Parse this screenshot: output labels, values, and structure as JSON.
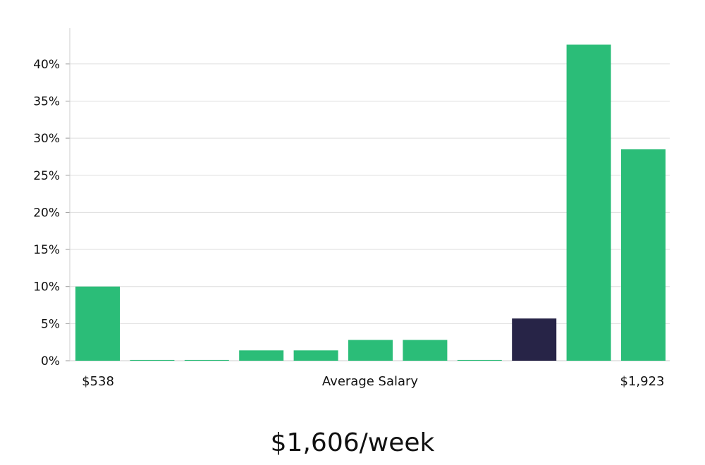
{
  "chart_data": {
    "type": "bar",
    "title": "",
    "xlabel": "Average Salary",
    "ylabel": "",
    "x_min_label": "$538",
    "x_max_label": "$1,923",
    "ylim": [
      0,
      45
    ],
    "yticks": [
      0,
      5,
      10,
      15,
      20,
      25,
      30,
      35,
      40
    ],
    "ytick_labels": [
      "0%",
      "5%",
      "10%",
      "15%",
      "20%",
      "25%",
      "30%",
      "35%",
      "40%"
    ],
    "values": [
      10,
      0.1,
      0.1,
      1.4,
      1.4,
      2.8,
      2.8,
      0.1,
      5.7,
      42.6,
      28.5
    ],
    "highlight_index": 8,
    "grid": true,
    "colors": {
      "bar": "#2bbd78",
      "highlight": "#272447",
      "grid": "#dddddd",
      "axis": "#cccccc"
    }
  },
  "salary_display": "$1,606/week"
}
